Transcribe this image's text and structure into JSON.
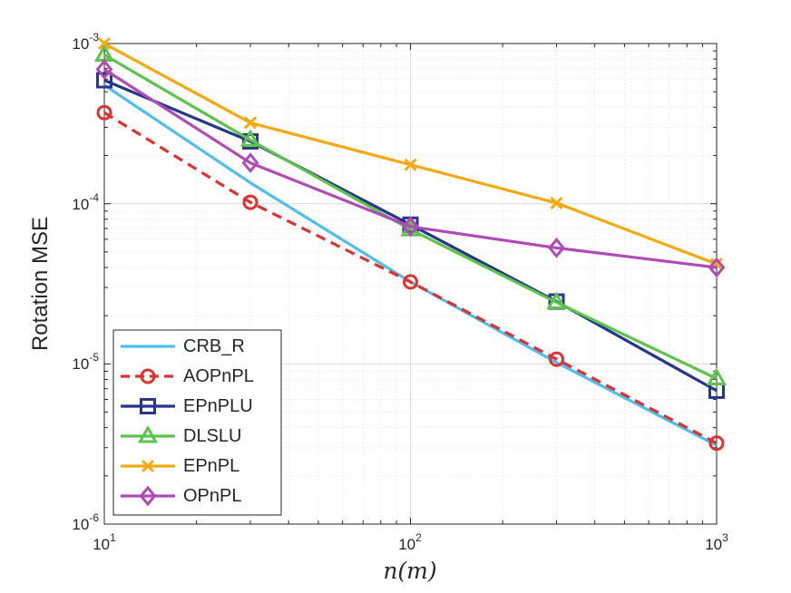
{
  "chart_data": {
    "type": "line",
    "title": "",
    "xlabel": "n(m)",
    "ylabel": "Rotation MSE",
    "xscale": "log",
    "yscale": "log",
    "xlim": [
      10,
      1000
    ],
    "ylim": [
      1e-06,
      0.001
    ],
    "xticks": [
      {
        "base": "10",
        "exp": "1"
      },
      {
        "base": "10",
        "exp": "2"
      },
      {
        "base": "10",
        "exp": "3"
      }
    ],
    "yticks": [
      {
        "base": "10",
        "exp": "-6"
      },
      {
        "base": "10",
        "exp": "-5"
      },
      {
        "base": "10",
        "exp": "-4"
      },
      {
        "base": "10",
        "exp": "-3"
      }
    ],
    "grid": true,
    "legend_position": "bottom-left",
    "x": [
      10,
      30,
      100,
      300,
      1000
    ],
    "series": [
      {
        "name": "CRB_R",
        "color": "#4DBEEE",
        "dash": "solid",
        "marker": "none",
        "values": [
          0.00055,
          0.000135,
          3.25e-05,
          1.02e-05,
          3.1e-06
        ]
      },
      {
        "name": "AOPnPL",
        "color": "#E03030",
        "dash": "dashed",
        "marker": "circle",
        "values": [
          0.00037,
          0.000102,
          3.25e-05,
          1.07e-05,
          3.2e-06
        ]
      },
      {
        "name": "EPnPLU",
        "color": "#27368D",
        "dash": "solid",
        "marker": "square",
        "values": [
          0.00059,
          0.000245,
          7.4e-05,
          2.45e-05,
          6.8e-06
        ]
      },
      {
        "name": "DLSLU",
        "color": "#5BC44A",
        "dash": "solid",
        "marker": "triangle",
        "values": [
          0.00085,
          0.00025,
          6.9e-05,
          2.42e-05,
          8.1e-06
        ]
      },
      {
        "name": "EPnPL",
        "color": "#F5A910",
        "dash": "solid",
        "marker": "x",
        "values": [
          0.001,
          0.00032,
          0.000175,
          0.000101,
          4.2e-05
        ]
      },
      {
        "name": "OPnPL",
        "color": "#B04AB8",
        "dash": "solid",
        "marker": "diamond",
        "values": [
          0.00069,
          0.00018,
          7.2e-05,
          5.3e-05,
          4e-05
        ]
      }
    ]
  }
}
